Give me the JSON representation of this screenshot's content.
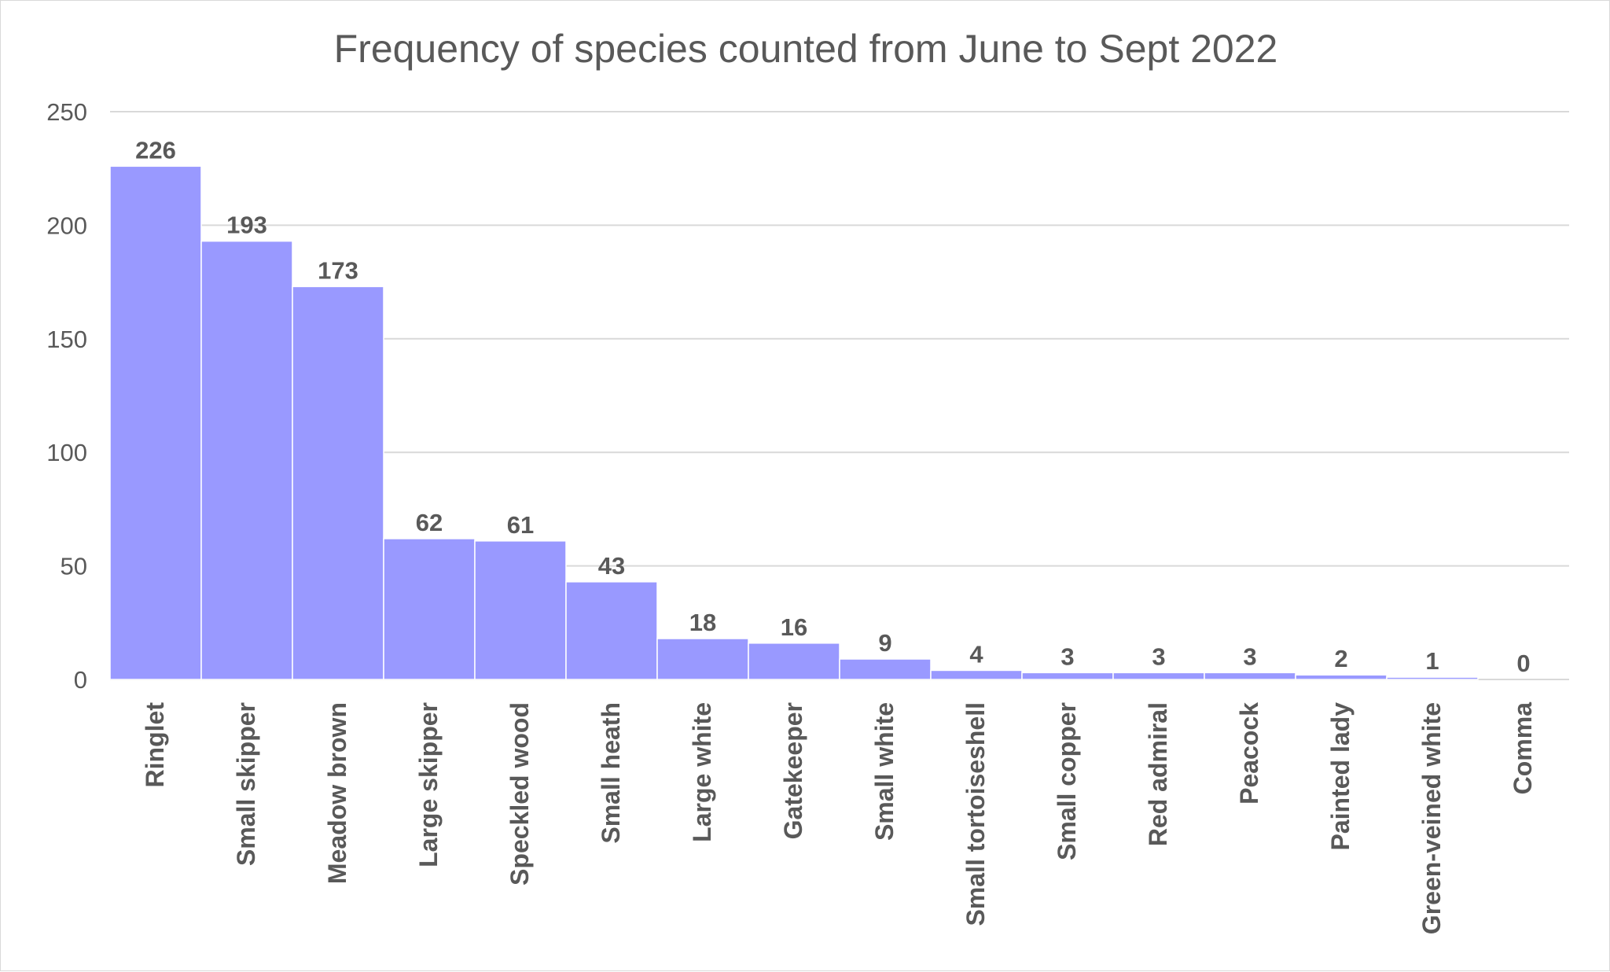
{
  "chart_data": {
    "type": "bar",
    "title": "Frequency of species counted from June to Sept 2022",
    "xlabel": "",
    "ylabel": "",
    "ylim": [
      0,
      250
    ],
    "yticks": [
      0,
      50,
      100,
      150,
      200,
      250
    ],
    "grid": true,
    "legend": "none",
    "bar_color": "#9999ff",
    "categories": [
      "Ringlet",
      "Small skipper",
      "Meadow brown",
      "Large skipper",
      "Speckled wood",
      "Small heath",
      "Large white",
      "Gatekeeper",
      "Small white",
      "Small tortoiseshell",
      "Small copper",
      "Red admiral",
      "Peacock",
      "Painted lady",
      "Green-veined white",
      "Comma"
    ],
    "values": [
      226,
      193,
      173,
      62,
      61,
      43,
      18,
      16,
      9,
      4,
      3,
      3,
      3,
      2,
      1,
      0
    ],
    "data_labels": [
      "226",
      "193",
      "173",
      "62",
      "61",
      "43",
      "18",
      "16",
      "9",
      "4",
      "3",
      "3",
      "3",
      "2",
      "1",
      "0"
    ]
  }
}
